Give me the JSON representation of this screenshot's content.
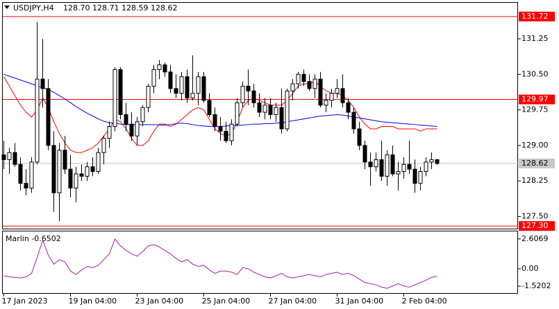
{
  "chart_data": [
    {
      "type": "candlestick",
      "header": {
        "symbol": "USDJPY,H4",
        "ohlc_text": "128.70 128.71 128.59 128.62"
      },
      "categories": [
        "17 Jan 2023",
        null,
        null,
        null,
        null,
        null,
        null,
        null,
        null,
        null,
        null,
        null,
        "19 Jan 04:00",
        null,
        null,
        null,
        null,
        null,
        null,
        null,
        null,
        null,
        null,
        null,
        "23 Jan 04:00",
        null,
        null,
        null,
        null,
        null,
        null,
        null,
        null,
        null,
        null,
        null,
        "25 Jan 04:00",
        null,
        null,
        null,
        null,
        null,
        null,
        null,
        null,
        null,
        null,
        null,
        "27 Jan 04:00",
        null,
        null,
        null,
        null,
        null,
        null,
        null,
        null,
        null,
        null,
        null,
        "31 Jan 04:00",
        null,
        null,
        null,
        null,
        null,
        null,
        null,
        null,
        null,
        null,
        null,
        "2 Feb 04:00",
        null,
        null,
        null,
        null,
        null,
        null
      ],
      "candles": {
        "open": [
          128.8,
          128.7,
          128.85,
          128.6,
          128.2,
          128.1,
          128.65,
          130.4,
          130.2,
          129.0,
          128.0,
          128.9,
          128.5,
          128.1,
          128.4,
          128.35,
          128.55,
          128.45,
          128.85,
          129.15,
          129.4,
          130.6,
          129.65,
          129.45,
          129.2,
          129.5,
          129.8,
          130.25,
          130.6,
          130.7,
          130.55,
          130.2,
          130.1,
          130.45,
          130.0,
          130.1,
          130.45,
          129.95,
          129.65,
          129.4,
          129.3,
          129.1,
          129.45,
          129.9,
          130.25,
          130.15,
          129.9,
          129.7,
          129.85,
          129.65,
          129.8,
          129.35,
          130.15,
          130.3,
          130.5,
          130.35,
          130.2,
          130.4,
          129.85,
          129.95,
          130.1,
          130.2,
          129.9,
          129.7,
          129.35,
          129.0,
          128.65,
          128.55,
          128.7,
          128.35,
          128.8,
          128.4,
          128.45,
          128.6,
          128.5,
          128.2,
          128.45,
          128.65,
          128.7
        ],
        "high": [
          129.1,
          128.95,
          129.05,
          128.75,
          128.5,
          128.75,
          131.6,
          131.25,
          130.4,
          129.3,
          129.05,
          129.2,
          128.8,
          128.55,
          128.6,
          128.65,
          128.75,
          128.95,
          129.2,
          129.5,
          130.65,
          130.65,
          129.9,
          129.7,
          129.6,
          129.85,
          130.3,
          130.7,
          130.8,
          130.75,
          130.7,
          130.5,
          130.55,
          130.6,
          130.9,
          130.55,
          130.55,
          130.1,
          129.8,
          129.6,
          129.5,
          129.55,
          130.0,
          130.35,
          130.6,
          130.3,
          130.1,
          130.0,
          130.0,
          129.9,
          130.2,
          130.2,
          130.4,
          130.55,
          130.6,
          130.5,
          130.5,
          130.55,
          130.1,
          130.2,
          130.4,
          130.5,
          130.0,
          129.8,
          129.5,
          129.1,
          128.85,
          128.85,
          129.1,
          128.9,
          129.0,
          128.65,
          128.75,
          129.1,
          128.7,
          128.55,
          128.75,
          128.85,
          128.71
        ],
        "low": [
          128.5,
          128.4,
          128.55,
          128.05,
          127.95,
          128.0,
          128.6,
          129.8,
          128.9,
          127.6,
          127.4,
          128.4,
          127.9,
          127.8,
          128.25,
          128.25,
          128.35,
          128.4,
          128.6,
          128.95,
          129.3,
          129.55,
          129.3,
          129.1,
          129.0,
          129.4,
          129.7,
          130.1,
          130.4,
          130.45,
          130.1,
          130.0,
          129.95,
          129.9,
          129.95,
          129.85,
          129.9,
          129.6,
          129.3,
          129.1,
          129.05,
          129.0,
          129.4,
          129.8,
          129.85,
          129.8,
          129.6,
          129.55,
          129.55,
          129.5,
          129.25,
          129.3,
          129.95,
          130.2,
          130.25,
          130.15,
          130.0,
          129.8,
          129.7,
          129.8,
          130.0,
          129.8,
          129.55,
          129.25,
          128.9,
          128.5,
          128.15,
          128.45,
          128.25,
          128.15,
          128.35,
          128.05,
          128.3,
          128.4,
          128.0,
          128.05,
          128.35,
          128.5,
          128.59
        ],
        "close": [
          128.7,
          128.85,
          128.6,
          128.2,
          128.1,
          128.65,
          130.4,
          130.2,
          129.0,
          128.0,
          128.9,
          128.5,
          128.1,
          128.4,
          128.35,
          128.55,
          128.45,
          128.85,
          129.15,
          129.4,
          130.6,
          129.65,
          129.45,
          129.2,
          129.5,
          129.8,
          130.25,
          130.6,
          130.7,
          130.55,
          130.2,
          130.1,
          130.45,
          130.0,
          130.1,
          130.45,
          129.95,
          129.65,
          129.4,
          129.3,
          129.1,
          129.45,
          129.9,
          130.25,
          130.15,
          129.9,
          129.7,
          129.85,
          129.65,
          129.8,
          129.35,
          130.15,
          130.3,
          130.5,
          130.35,
          130.2,
          130.4,
          129.85,
          129.95,
          130.1,
          130.2,
          129.9,
          129.7,
          129.35,
          129.0,
          128.65,
          128.55,
          128.7,
          128.35,
          128.8,
          128.4,
          128.45,
          128.6,
          128.5,
          128.2,
          128.45,
          128.65,
          128.7,
          128.62
        ]
      },
      "bull_color": "#ffffff",
      "bear_color": "#000000",
      "outline_color": "#000000",
      "series": [
        {
          "color": "#ff0000",
          "values": [
            130.45,
            130.25,
            130.05,
            129.85,
            129.7,
            129.6,
            129.75,
            130.0,
            129.8,
            129.5,
            129.25,
            129.05,
            128.9,
            128.85,
            128.85,
            128.9,
            128.95,
            129.05,
            129.2,
            129.35,
            129.55,
            129.5,
            129.35,
            129.15,
            129.0,
            129.0,
            129.1,
            129.3,
            129.45,
            129.45,
            129.4,
            129.45,
            129.55,
            129.65,
            129.75,
            129.8,
            129.75,
            129.55,
            129.35,
            129.25,
            129.2,
            129.25,
            129.5,
            129.8,
            129.95,
            130.0,
            129.95,
            129.9,
            129.85,
            129.85,
            129.85,
            129.95,
            130.1,
            130.25,
            130.3,
            130.3,
            130.35,
            130.25,
            130.15,
            130.1,
            130.1,
            130.05,
            129.95,
            129.8,
            129.6,
            129.45,
            129.35,
            129.35,
            129.4,
            129.4,
            129.4,
            129.35,
            129.35,
            129.35,
            129.35,
            129.3,
            129.35,
            129.35,
            129.35
          ]
        },
        {
          "color": "#0000ff",
          "values": [
            130.5,
            130.46,
            130.42,
            130.38,
            130.34,
            130.3,
            130.26,
            130.22,
            130.18,
            130.12,
            130.05,
            129.98,
            129.9,
            129.82,
            129.75,
            129.68,
            129.62,
            129.56,
            129.51,
            129.48,
            129.47,
            129.45,
            129.44,
            129.44,
            129.44,
            129.44,
            129.44,
            129.44,
            129.43,
            129.43,
            129.44,
            129.46,
            129.47,
            129.46,
            129.44,
            129.42,
            129.41,
            129.4,
            129.4,
            129.4,
            129.41,
            129.42,
            129.42,
            129.43,
            129.44,
            129.45,
            129.45,
            129.46,
            129.46,
            129.47,
            129.48,
            129.5,
            129.52,
            129.54,
            129.56,
            129.58,
            129.6,
            129.62,
            129.63,
            129.64,
            129.65,
            129.64,
            129.62,
            129.6,
            129.58,
            129.56,
            129.54,
            129.52,
            129.5,
            129.49,
            129.48,
            129.47,
            129.46,
            129.45,
            129.44,
            129.43,
            129.42,
            129.41,
            129.4
          ]
        }
      ],
      "levels": [
        {
          "value": 131.72,
          "label": "131.72"
        },
        {
          "value": 129.97,
          "label": "129.97"
        },
        {
          "value": 127.3,
          "label": "127.30"
        }
      ],
      "level_color": "#ff0000",
      "last_price": 128.62,
      "ylim": [
        127.23,
        132.01
      ],
      "yticks": [
        131.25,
        {
          "value": 130.5,
          "label": "130.50"
        },
        129.75,
        {
          "value": 129,
          "label": "129.00"
        },
        128.25,
        {
          "value": 127.5,
          "label": "127.50"
        }
      ]
    },
    {
      "type": "line",
      "title": "Marlin -0.6502",
      "series": [
        {
          "color": "#a020a0",
          "values": [
            -0.6,
            -0.7,
            -0.75,
            -0.8,
            -0.7,
            -0.4,
            1.0,
            2.5,
            1.2,
            0.4,
            0.8,
            0.6,
            -0.2,
            -0.5,
            -0.1,
            0.2,
            0.1,
            0.3,
            0.8,
            1.3,
            2.6,
            2.0,
            1.6,
            1.3,
            1.1,
            1.5,
            2.0,
            2.1,
            1.9,
            1.6,
            1.3,
            0.9,
            0.6,
            0.8,
            0.4,
            0.2,
            0.3,
            -0.1,
            -0.4,
            -0.2,
            -0.2,
            -0.3,
            -0.5,
            0.1,
            0.0,
            -0.3,
            -0.5,
            -0.7,
            -0.8,
            -0.6,
            -0.4,
            -0.7,
            -0.8,
            -0.7,
            -0.6,
            -0.5,
            -0.6,
            -0.7,
            -0.5,
            -0.4,
            -0.3,
            -0.5,
            -0.4,
            -0.6,
            -0.9,
            -1.2,
            -1.3,
            -1.4,
            -1.6,
            -1.7,
            -1.5,
            -1.3,
            -1.5,
            -1.6,
            -1.4,
            -1.2,
            -1.0,
            -0.75,
            -0.65
          ]
        }
      ],
      "ylim": [
        -2.18,
        3.26
      ],
      "yticks": [
        2.6069,
        {
          "value": 0,
          "label": "0.00"
        },
        -1.5202
      ]
    }
  ]
}
